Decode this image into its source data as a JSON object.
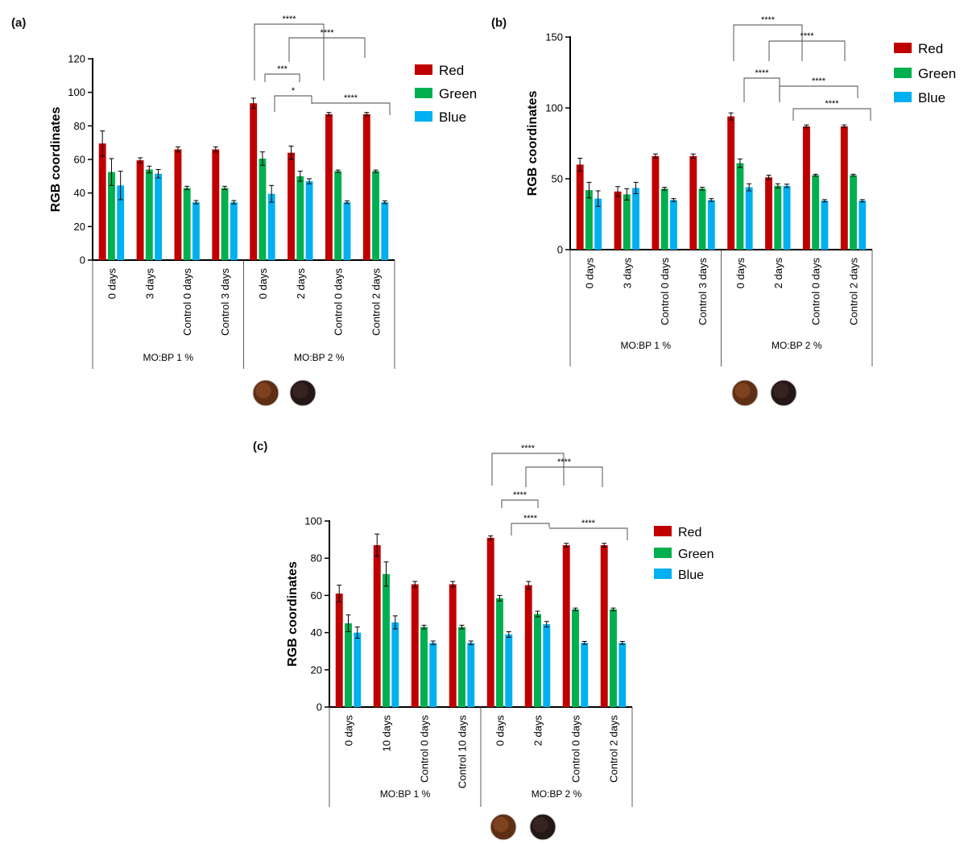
{
  "colors": {
    "red": "#c00000",
    "green": "#00b050",
    "blue": "#00b0f0"
  },
  "legend": [
    "Red",
    "Green",
    "Blue"
  ],
  "chart_data": [
    {
      "panel": "(a)",
      "type": "bar",
      "ylabel": "RGB coordinates",
      "ylim": [
        0,
        120
      ],
      "yticks": [
        0,
        20,
        40,
        60,
        80,
        100,
        120
      ],
      "categories": [
        "0 days",
        "3 days",
        "Control 0 days",
        "Control 3 days",
        "0 days",
        "2 days",
        "Control 0 days",
        "Control 2 days"
      ],
      "groups": [
        {
          "label": "MO:BP 1 %",
          "from": 0,
          "to": 3
        },
        {
          "label": "MO:BP 2 %",
          "from": 4,
          "to": 7
        }
      ],
      "series": [
        {
          "name": "Red",
          "values": [
            69.5,
            59.5,
            66,
            66,
            93.5,
            64,
            87,
            87
          ],
          "errors": [
            7.5,
            1.5,
            1.5,
            1.5,
            3,
            4,
            1,
            1
          ]
        },
        {
          "name": "Green",
          "values": [
            52.5,
            54,
            43,
            43,
            60.5,
            50,
            53,
            53
          ],
          "errors": [
            8,
            2,
            1,
            1,
            4,
            3,
            0.7,
            0.7
          ]
        },
        {
          "name": "Blue",
          "values": [
            44.5,
            51.5,
            34.5,
            34.5,
            39.5,
            47,
            34.5,
            34.5
          ],
          "errors": [
            8.5,
            2.5,
            1,
            1,
            5,
            1.5,
            0.8,
            0.8
          ]
        }
      ],
      "significance": [
        {
          "label": "****",
          "from_bar": "4R",
          "to_bar": "5R"
        },
        {
          "label": "****",
          "from_bar": "5R",
          "to_bar": "6R"
        },
        {
          "label": "***",
          "from_bar": "4G",
          "to_bar": "5G"
        },
        {
          "label": "*",
          "from_bar": "4B",
          "to_bar": "5B"
        },
        {
          "label": "****",
          "from_bar": "5B",
          "to_bar": "7B"
        }
      ]
    },
    {
      "panel": "(b)",
      "type": "bar",
      "ylabel": "RGB coordinates",
      "ylim": [
        0,
        150
      ],
      "yticks": [
        0,
        50,
        100,
        150
      ],
      "categories": [
        "0 days",
        "3 days",
        "Control 0 days",
        "Control 3 days",
        "0 days",
        "2 days",
        "Control 0 days",
        "Control 2 days"
      ],
      "groups": [
        {
          "label": "MO:BP 1 %",
          "from": 0,
          "to": 3
        },
        {
          "label": "MO:BP 2 %",
          "from": 4,
          "to": 7
        }
      ],
      "series": [
        {
          "name": "Red",
          "values": [
            60,
            41,
            66,
            66,
            94,
            51,
            87,
            87
          ],
          "errors": [
            4.5,
            3.5,
            1.5,
            1.5,
            2.5,
            1.5,
            1,
            1
          ]
        },
        {
          "name": "Green",
          "values": [
            42,
            39,
            43,
            43,
            61,
            45,
            52.5,
            52.5
          ],
          "errors": [
            5.5,
            4,
            1,
            1,
            3,
            1.5,
            0.7,
            0.7
          ]
        },
        {
          "name": "Blue",
          "values": [
            36,
            43.5,
            35,
            35,
            44,
            45,
            34.5,
            34.5
          ],
          "errors": [
            5.5,
            4,
            1,
            1,
            2.5,
            1.2,
            0.8,
            0.8
          ]
        }
      ],
      "significance": [
        {
          "label": "****",
          "from_bar": "4R",
          "to_bar": "5R"
        },
        {
          "label": "****",
          "from_bar": "5R",
          "to_bar": "6R"
        },
        {
          "label": "****",
          "from_bar": "4G",
          "to_bar": "5G"
        },
        {
          "label": "****",
          "from_bar": "5G",
          "to_bar": "7B"
        },
        {
          "label": "****",
          "from_bar": "6R",
          "to_bar": "7B"
        }
      ]
    },
    {
      "panel": "(c)",
      "type": "bar",
      "ylabel": "RGB coordinates",
      "ylim": [
        0,
        100
      ],
      "yticks": [
        0,
        20,
        40,
        60,
        80,
        100
      ],
      "categories": [
        "0 days",
        "10 days",
        "Control 0 days",
        "Control 10 days",
        "0 days",
        "2 days",
        "Control 0 days",
        "Control 2 days"
      ],
      "groups": [
        {
          "label": "MO:BP 1 %",
          "from": 0,
          "to": 3
        },
        {
          "label": "MO:BP 2 %",
          "from": 4,
          "to": 7
        }
      ],
      "series": [
        {
          "name": "Red",
          "values": [
            61,
            87,
            66,
            66,
            91,
            65.5,
            87,
            87
          ],
          "errors": [
            4.5,
            6,
            1.5,
            1.5,
            1,
            2,
            1,
            1
          ]
        },
        {
          "name": "Green",
          "values": [
            45,
            71.5,
            43,
            43,
            58.5,
            50,
            52.5,
            52.5
          ],
          "errors": [
            4.5,
            6.5,
            1,
            1,
            1.5,
            1.5,
            0.7,
            0.7
          ]
        },
        {
          "name": "Blue",
          "values": [
            40,
            45.5,
            34.5,
            34.5,
            39,
            44.5,
            34.5,
            34.5
          ],
          "errors": [
            3,
            3.5,
            1,
            1,
            1.5,
            1.5,
            0.8,
            0.8
          ]
        }
      ],
      "significance": [
        {
          "label": "****",
          "from_bar": "4R",
          "to_bar": "5R"
        },
        {
          "label": "****",
          "from_bar": "5R",
          "to_bar": "6R"
        },
        {
          "label": "****",
          "from_bar": "4G",
          "to_bar": "5G"
        },
        {
          "label": "****",
          "from_bar": "4B",
          "to_bar": "5B"
        },
        {
          "label": "****",
          "from_bar": "5B",
          "to_bar": "7B"
        }
      ]
    }
  ]
}
